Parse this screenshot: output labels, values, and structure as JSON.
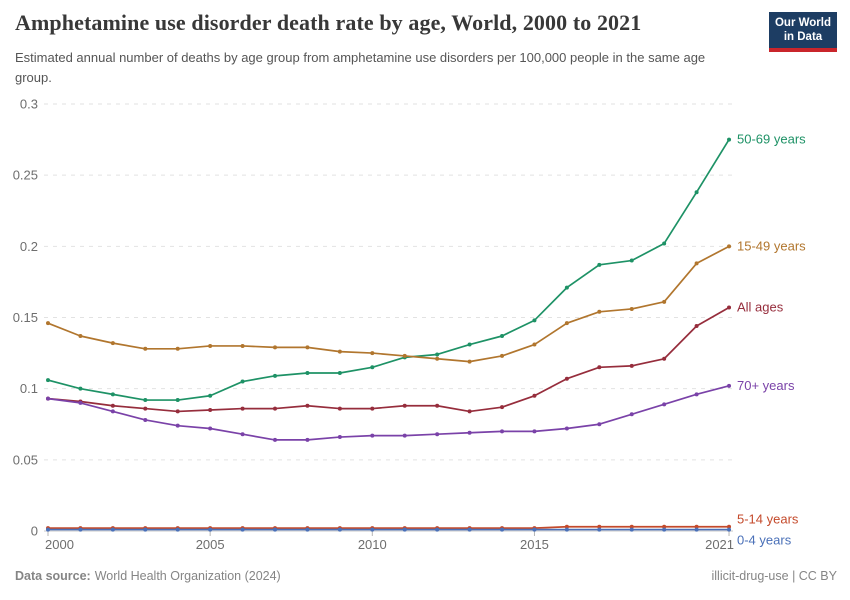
{
  "header": {
    "title": "Amphetamine use disorder death rate by age, World, 2000 to 2021",
    "subtitle": "Estimated annual number of deaths by age group from amphetamine use disorders per 100,000 people in the same age group.",
    "logo": {
      "line1": "Our World",
      "line2": "in Data"
    }
  },
  "footer": {
    "source_label": "Data source:",
    "source_value": "World Health Organization (2024)",
    "right_text": "illicit-drug-use | CC BY"
  },
  "colors": {
    "logo_navy": "#1d3d63",
    "logo_red": "#c9252b",
    "axis_text": "#6e6e6e",
    "grid": "#e2e2e2",
    "zero_line": "#c9c9c9",
    "tick": "#b5b5b5",
    "title_text": "#383838",
    "subtitle_text": "#555555",
    "footer_text": "#858585"
  },
  "chart_data": {
    "type": "line",
    "title": "Amphetamine use disorder death rate by age, World, 2000 to 2021",
    "xlabel": "",
    "ylabel": "",
    "ylim": [
      0,
      0.3
    ],
    "yticks": [
      0,
      0.05,
      0.1,
      0.15,
      0.2,
      0.25,
      0.3
    ],
    "xticks": [
      2000,
      2005,
      2010,
      2015,
      2021
    ],
    "grid": "horizontal-dashed",
    "legend_position": "right-end-labels",
    "x": [
      2000,
      2001,
      2002,
      2003,
      2004,
      2005,
      2006,
      2007,
      2008,
      2009,
      2010,
      2011,
      2012,
      2013,
      2014,
      2015,
      2016,
      2017,
      2018,
      2019,
      2020,
      2021
    ],
    "series": [
      {
        "name": "50-69 years",
        "color": "#1e9266",
        "values": [
          0.106,
          0.1,
          0.096,
          0.092,
          0.092,
          0.095,
          0.105,
          0.109,
          0.111,
          0.111,
          0.115,
          0.122,
          0.124,
          0.131,
          0.137,
          0.148,
          0.171,
          0.187,
          0.19,
          0.202,
          0.238,
          0.275
        ]
      },
      {
        "name": "15-49 years",
        "color": "#b1762e",
        "values": [
          0.146,
          0.137,
          0.132,
          0.128,
          0.128,
          0.13,
          0.13,
          0.129,
          0.129,
          0.126,
          0.125,
          0.123,
          0.121,
          0.119,
          0.123,
          0.131,
          0.146,
          0.154,
          0.156,
          0.161,
          0.188,
          0.2
        ]
      },
      {
        "name": "All ages",
        "color": "#962d3c",
        "values": [
          0.093,
          0.091,
          0.088,
          0.086,
          0.084,
          0.085,
          0.086,
          0.086,
          0.088,
          0.086,
          0.086,
          0.088,
          0.088,
          0.084,
          0.087,
          0.095,
          0.107,
          0.115,
          0.116,
          0.121,
          0.144,
          0.157
        ]
      },
      {
        "name": "70+ years",
        "color": "#7a42a8",
        "values": [
          0.093,
          0.09,
          0.084,
          0.078,
          0.074,
          0.072,
          0.068,
          0.064,
          0.064,
          0.066,
          0.067,
          0.067,
          0.068,
          0.069,
          0.07,
          0.07,
          0.072,
          0.075,
          0.082,
          0.089,
          0.096,
          0.102
        ]
      },
      {
        "name": "5-14 years",
        "color": "#c44a2b",
        "values": [
          0.002,
          0.002,
          0.002,
          0.002,
          0.002,
          0.002,
          0.002,
          0.002,
          0.002,
          0.002,
          0.002,
          0.002,
          0.002,
          0.002,
          0.002,
          0.002,
          0.003,
          0.003,
          0.003,
          0.003,
          0.003,
          0.003
        ]
      },
      {
        "name": "0-4 years",
        "color": "#4a70b8",
        "values": [
          0.001,
          0.001,
          0.001,
          0.001,
          0.001,
          0.001,
          0.001,
          0.001,
          0.001,
          0.001,
          0.001,
          0.001,
          0.001,
          0.001,
          0.001,
          0.001,
          0.001,
          0.001,
          0.001,
          0.001,
          0.001,
          0.001
        ]
      }
    ]
  }
}
